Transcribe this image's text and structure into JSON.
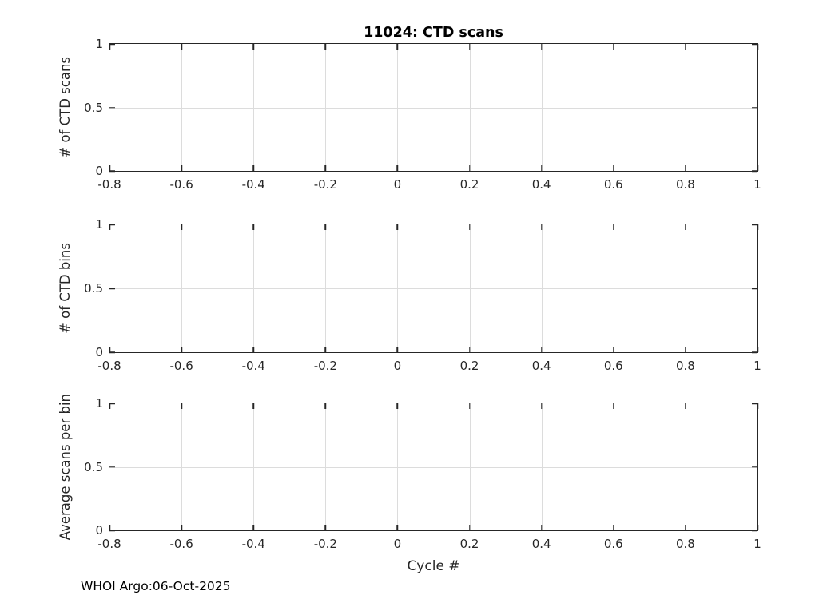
{
  "figure": {
    "title": "11024: CTD scans",
    "xlabel": "Cycle #",
    "footer": "WHOI Argo:06-Oct-2025"
  },
  "colors": {
    "background": "#ffffff",
    "axis": "#262626",
    "grid": "#dcdcdc",
    "text": "#262626",
    "title": "#000000"
  },
  "chart_data": [
    {
      "type": "line",
      "subplot_position": "top",
      "title": "11024: CTD scans",
      "xlabel": "",
      "ylabel": "# of CTD scans",
      "xlim": [
        -0.8,
        1
      ],
      "ylim": [
        0,
        1
      ],
      "xticks": [
        -0.8,
        -0.6,
        -0.4,
        -0.2,
        0,
        0.2,
        0.4,
        0.6,
        0.8,
        1
      ],
      "xtick_labels": [
        "-0.8",
        "-0.6",
        "-0.4",
        "-0.2",
        "0",
        "0.2",
        "0.4",
        "0.6",
        "0.8",
        "1"
      ],
      "yticks": [
        0,
        0.5,
        1
      ],
      "ytick_labels": [
        "0",
        "0.5",
        "1"
      ],
      "grid": true,
      "box": true,
      "legend": null,
      "series": []
    },
    {
      "type": "line",
      "subplot_position": "middle",
      "title": "",
      "xlabel": "",
      "ylabel": "# of CTD bins",
      "xlim": [
        -0.8,
        1
      ],
      "ylim": [
        0,
        1
      ],
      "xticks": [
        -0.8,
        -0.6,
        -0.4,
        -0.2,
        0,
        0.2,
        0.4,
        0.6,
        0.8,
        1
      ],
      "xtick_labels": [
        "-0.8",
        "-0.6",
        "-0.4",
        "-0.2",
        "0",
        "0.2",
        "0.4",
        "0.6",
        "0.8",
        "1"
      ],
      "yticks": [
        0,
        0.5,
        1
      ],
      "ytick_labels": [
        "0",
        "0.5",
        "1"
      ],
      "grid": true,
      "box": true,
      "legend": null,
      "series": []
    },
    {
      "type": "line",
      "subplot_position": "bottom",
      "title": "",
      "xlabel": "Cycle #",
      "ylabel": "Average scans per bin",
      "xlim": [
        -0.8,
        1
      ],
      "ylim": [
        0,
        1
      ],
      "xticks": [
        -0.8,
        -0.6,
        -0.4,
        -0.2,
        0,
        0.2,
        0.4,
        0.6,
        0.8,
        1
      ],
      "xtick_labels": [
        "-0.8",
        "-0.6",
        "-0.4",
        "-0.2",
        "0",
        "0.2",
        "0.4",
        "0.6",
        "0.8",
        "1"
      ],
      "yticks": [
        0,
        0.5,
        1
      ],
      "ytick_labels": [
        "0",
        "0.5",
        "1"
      ],
      "grid": true,
      "box": true,
      "legend": null,
      "series": []
    }
  ]
}
